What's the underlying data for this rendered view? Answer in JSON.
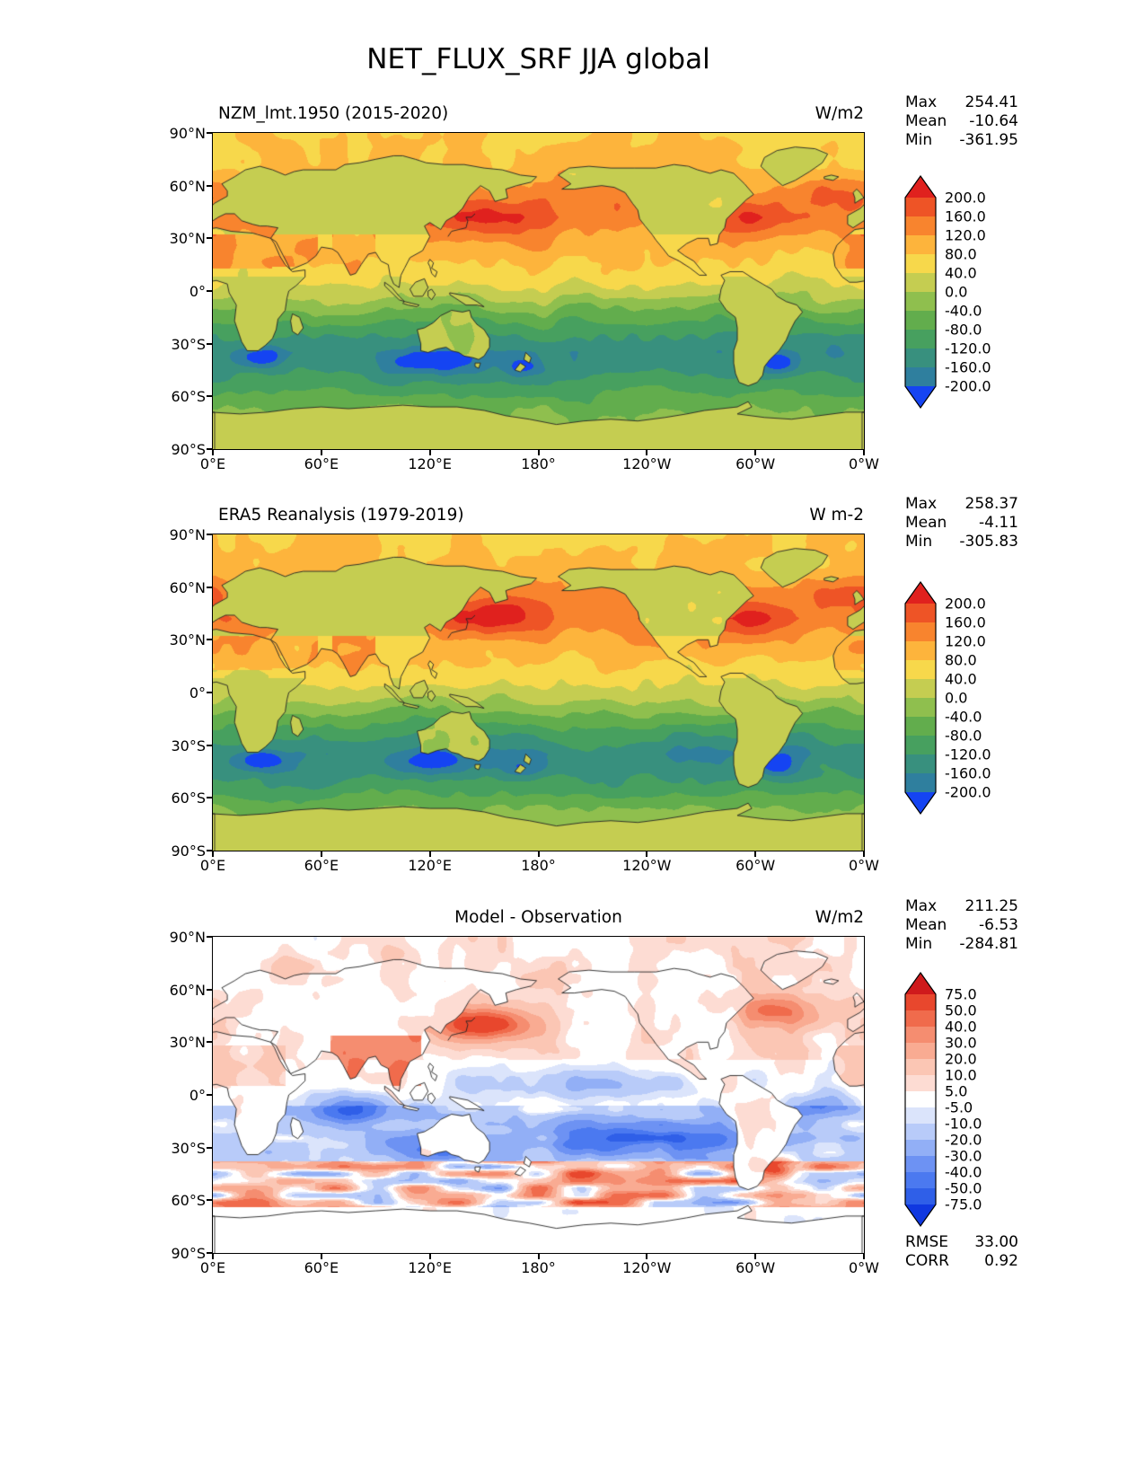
{
  "title": "NET_FLUX_SRF JJA global",
  "axes": {
    "x_ticks": [
      "0°E",
      "60°E",
      "120°E",
      "180°",
      "120°W",
      "60°W",
      "0°W"
    ],
    "y_ticks": [
      "90°N",
      "60°N",
      "30°N",
      "0°",
      "30°S",
      "60°S",
      "90°S"
    ]
  },
  "chart_data": [
    {
      "type": "heatmap",
      "panel": "model",
      "title": "NZM_lmt.1950 (2015-2020)",
      "units": "W/m2",
      "stats": {
        "max_label": "Max",
        "max": "254.41",
        "mean_label": "Mean",
        "mean": "-10.64",
        "min_label": "Min",
        "min": "-361.95"
      },
      "colorbar": {
        "levels_top_to_bottom": [
          "200.0",
          "160.0",
          "120.0",
          "80.0",
          "40.0",
          "0.0",
          "-40.0",
          "-80.0",
          "-120.0",
          "-160.0",
          "-200.0"
        ],
        "colors_top_to_bottom": [
          "#e0211e",
          "#ee5426",
          "#f8842e",
          "#fdb43c",
          "#f7d84b",
          "#c5cd51",
          "#8fbf4e",
          "#62ad4d",
          "#47a05f",
          "#38907e",
          "#2f7f9e",
          "#1544f2"
        ]
      }
    },
    {
      "type": "heatmap",
      "panel": "observation",
      "title": "ERA5 Reanalysis (1979-2019)",
      "units": "W m-2",
      "stats": {
        "max_label": "Max",
        "max": "258.37",
        "mean_label": "Mean",
        "mean": "-4.11",
        "min_label": "Min",
        "min": "-305.83"
      },
      "colorbar": {
        "levels_top_to_bottom": [
          "200.0",
          "160.0",
          "120.0",
          "80.0",
          "40.0",
          "0.0",
          "-40.0",
          "-80.0",
          "-120.0",
          "-160.0",
          "-200.0"
        ],
        "colors_top_to_bottom": [
          "#e0211e",
          "#ee5426",
          "#f8842e",
          "#fdb43c",
          "#f7d84b",
          "#c5cd51",
          "#8fbf4e",
          "#62ad4d",
          "#47a05f",
          "#38907e",
          "#2f7f9e",
          "#1544f2"
        ]
      }
    },
    {
      "type": "heatmap",
      "panel": "difference",
      "title": "Model - Observation",
      "units": "W/m2",
      "stats": {
        "max_label": "Max",
        "max": "211.25",
        "mean_label": "Mean",
        "mean": "-6.53",
        "min_label": "Min",
        "min": "-284.81"
      },
      "colorbar": {
        "levels_top_to_bottom": [
          "75.0",
          "50.0",
          "40.0",
          "30.0",
          "20.0",
          "10.0",
          "5.0",
          "-5.0",
          "-10.0",
          "-20.0",
          "-30.0",
          "-40.0",
          "-50.0",
          "-75.0"
        ],
        "colors_top_to_bottom": [
          "#cf1a1c",
          "#e8472d",
          "#f06b4c",
          "#f58d70",
          "#f9ab92",
          "#fbc6b4",
          "#fddcd3",
          "#ffffff",
          "#dbe4fb",
          "#b8cbf9",
          "#92aff6",
          "#6d92f3",
          "#4b79f0",
          "#2f5fe8",
          "#1038e0"
        ]
      },
      "metrics": {
        "rmse_label": "RMSE",
        "rmse": "33.00",
        "corr_label": "CORR",
        "corr": "0.92"
      }
    }
  ]
}
